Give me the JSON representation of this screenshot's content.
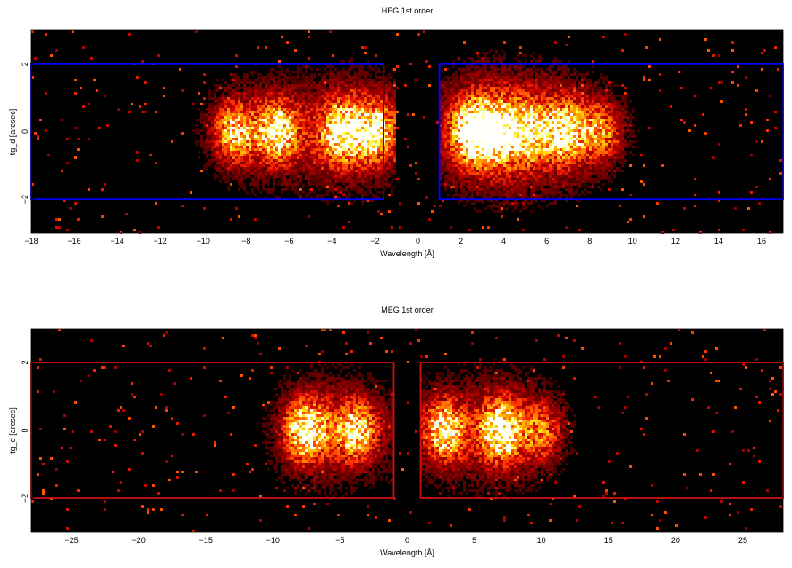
{
  "chart_data": [
    {
      "type": "heatmap",
      "title": "HEG 1st order",
      "xlabel": "Wavelength [Å]",
      "ylabel": "tg_d [arcsec]",
      "xlim": [
        -18,
        17
      ],
      "ylim": [
        -3,
        3
      ],
      "xticks": [
        -18,
        -16,
        -14,
        -12,
        -10,
        -8,
        -6,
        -4,
        -2,
        0,
        2,
        4,
        6,
        8,
        10,
        12,
        14,
        16
      ],
      "yticks": [
        -2,
        0,
        2
      ],
      "colormap": "heat (black-red-orange-yellow-white)",
      "background": "#000000",
      "grid": false,
      "regions": [
        {
          "x": [
            -18,
            -1.6
          ],
          "y": [
            -2,
            2
          ],
          "color": "#0000ff"
        },
        {
          "x": [
            1,
            17
          ],
          "y": [
            -2,
            2
          ],
          "color": "#0000ff"
        }
      ],
      "bright_features": [
        {
          "x": -8.5,
          "intensity": 0.7
        },
        {
          "x": -6.5,
          "intensity": 0.85
        },
        {
          "x": -3.5,
          "intensity": 1.0
        },
        {
          "x": -2.0,
          "intensity": 0.8
        },
        {
          "x": 2.5,
          "intensity": 0.95
        },
        {
          "x": 3.5,
          "intensity": 1.0
        },
        {
          "x": 5.0,
          "intensity": 0.75
        },
        {
          "x": 6.8,
          "intensity": 0.85
        },
        {
          "x": 8.5,
          "intensity": 0.5
        }
      ]
    },
    {
      "type": "heatmap",
      "title": "MEG 1st order",
      "xlabel": "Wavelength [Å]",
      "ylabel": "tg_d [arcsec]",
      "xlim": [
        -28,
        28
      ],
      "ylim": [
        -3,
        3
      ],
      "xticks": [
        -25,
        -20,
        -15,
        -10,
        -5,
        0,
        5,
        10,
        15,
        20,
        25
      ],
      "yticks": [
        -2,
        0,
        2
      ],
      "colormap": "heat (black-red-orange-yellow-white)",
      "background": "#000000",
      "grid": false,
      "regions": [
        {
          "x": [
            -28,
            -1
          ],
          "y": [
            -2,
            2
          ],
          "color": "#cc1111"
        },
        {
          "x": [
            1,
            28
          ],
          "y": [
            -2,
            2
          ],
          "color": "#cc1111"
        }
      ],
      "bright_features": [
        {
          "x": -7.5,
          "intensity": 1.0
        },
        {
          "x": -3.8,
          "intensity": 0.8
        },
        {
          "x": 2.8,
          "intensity": 0.85
        },
        {
          "x": 7.0,
          "intensity": 1.0
        },
        {
          "x": 10.0,
          "intensity": 0.45
        }
      ]
    }
  ]
}
